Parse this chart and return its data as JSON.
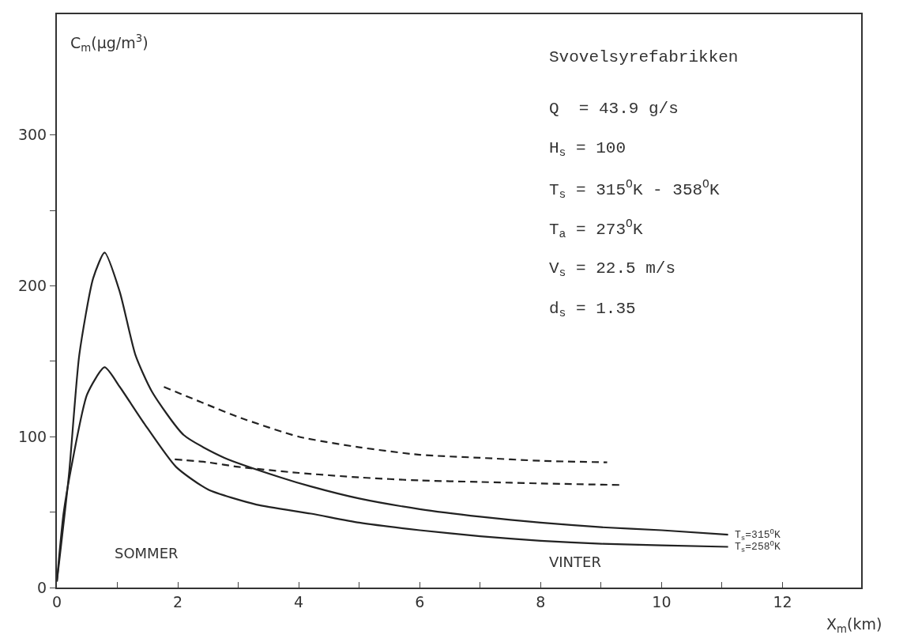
{
  "chart_data": {
    "type": "line",
    "title": "Svovelsyrefabrikken",
    "xlabel": "X$_{m}$(km)",
    "ylabel": "C$_{m}$(µg/m$^{3}$)",
    "xlim": [
      0,
      13.3
    ],
    "ylim": [
      0,
      380
    ],
    "xticks": [
      0,
      {
        "value": 1,
        "label": null
      },
      2,
      {
        "value": 3,
        "label": null
      },
      4,
      {
        "value": 5,
        "label": null
      },
      6,
      {
        "value": 7,
        "label": null
      },
      8,
      {
        "value": 9,
        "label": null
      },
      10,
      {
        "value": 11,
        "label": null
      },
      12
    ],
    "yticks": [
      0,
      {
        "value": 50,
        "label": null
      },
      100,
      {
        "value": 150,
        "label": null
      },
      200,
      {
        "value": 250,
        "label": null
      },
      300
    ],
    "legend": false,
    "marker": "none",
    "series": [
      {
        "name": "T$_{s}$=315$^{O}$K",
        "color": "#222222",
        "line_style": "solid",
        "x": [
          0,
          0.2,
          0.37,
          0.6,
          0.79,
          1.04,
          1.3,
          1.57,
          2.1,
          2.77,
          3.7,
          4.2,
          5,
          6,
          7,
          8,
          9,
          10,
          11.1
        ],
        "values": [
          4,
          75,
          154,
          205,
          222,
          196,
          154,
          130,
          101,
          86,
          73,
          67,
          59,
          52,
          47,
          43,
          40,
          38,
          35
        ]
      },
      {
        "name": "T$_{s}$=258$^{O}$K",
        "color": "#222222",
        "line_style": "solid",
        "x": [
          0,
          0.11,
          0.24,
          0.5,
          0.79,
          1.04,
          1.44,
          1.97,
          2.5,
          3.3,
          4.2,
          5,
          6,
          7,
          8,
          9,
          10,
          11.1
        ],
        "values": [
          4,
          49,
          80,
          128,
          146,
          133,
          109,
          80,
          65,
          55,
          49,
          43,
          38,
          34,
          31,
          29,
          28,
          27
        ]
      },
      {
        "color": "#222222",
        "line_style": "dashed",
        "x": [
          1.77,
          2.5,
          3,
          4,
          5,
          6,
          7,
          8,
          9.1
        ],
        "values": [
          133,
          121,
          113,
          100,
          93,
          88,
          86,
          84,
          83
        ]
      },
      {
        "color": "#222222",
        "line_style": "dashed",
        "x": [
          1.95,
          2.5,
          3,
          4,
          5,
          6,
          7,
          8,
          9.3
        ],
        "values": [
          85,
          83,
          80,
          76,
          73,
          71,
          70,
          69,
          68
        ]
      }
    ],
    "annotations": [
      "Q  = 43.9 g/s",
      "H$_{s}$ = 100",
      "T$_{s}$ = 315$^{O}$K - 358$^{O}$K",
      "T$_{a}$ = 273$^{O}$K",
      "V$_{s}$ = 22.5 m/s",
      "d$_{s}$ = 1.35",
      "SOMMER",
      "VINTER"
    ]
  }
}
